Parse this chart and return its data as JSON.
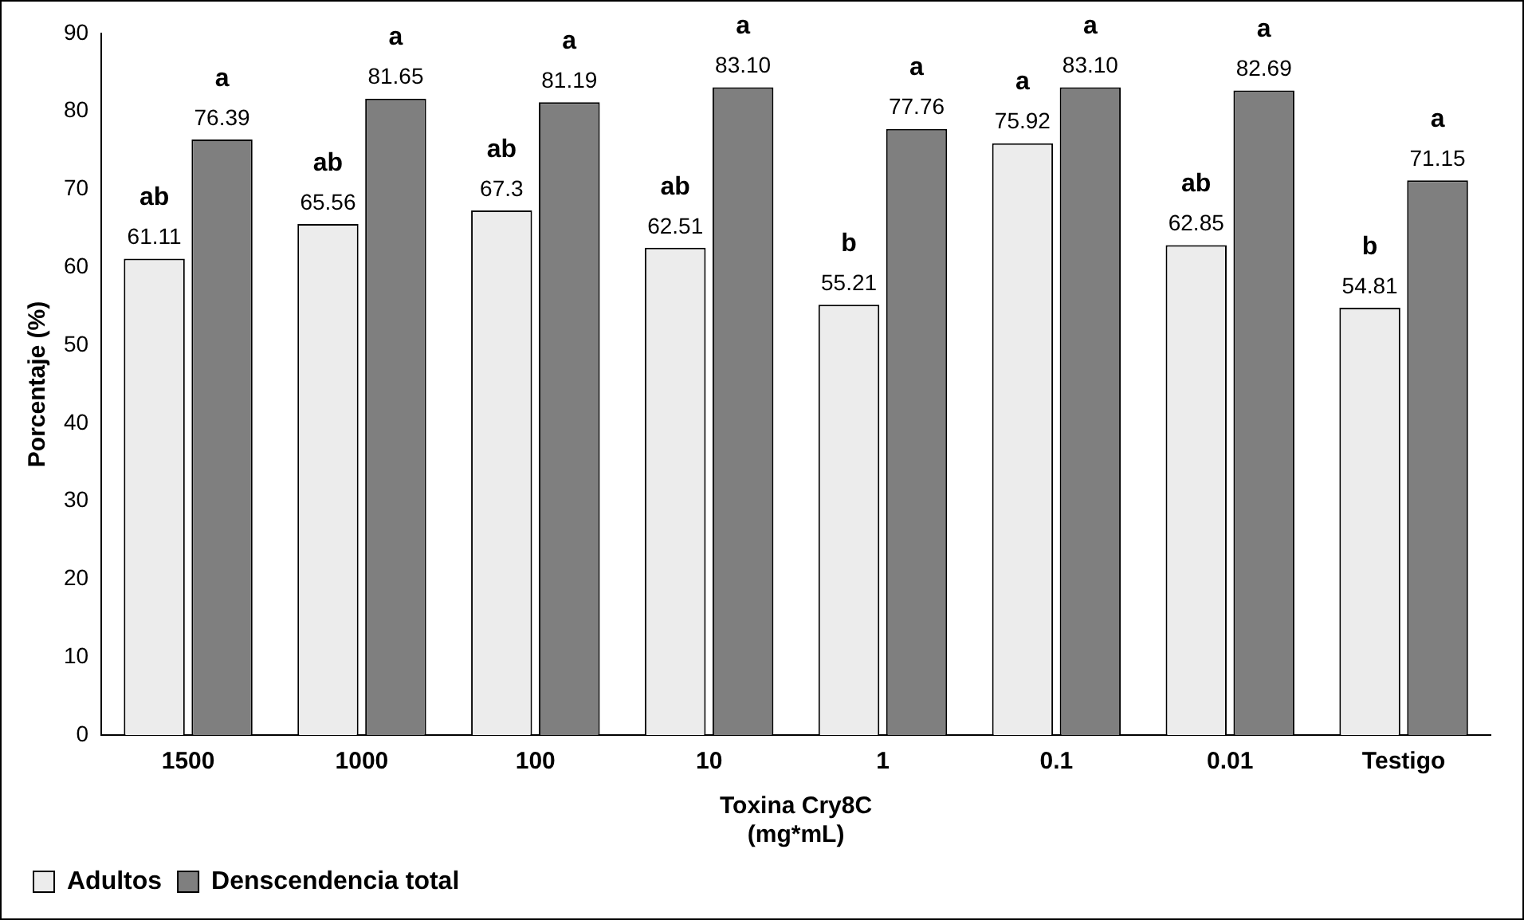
{
  "chart_data": {
    "type": "bar",
    "xlabel": [
      "Toxina Cry8C",
      "(mg*mL)"
    ],
    "ylabel": "Porcentaje (%)",
    "categories": [
      "1500",
      "1000",
      "100",
      "10",
      "1",
      "0.1",
      "0.01",
      "Testigo"
    ],
    "series": [
      {
        "name": "Adultos",
        "color": "#ececec",
        "values": [
          61.11,
          65.56,
          67.3,
          62.51,
          55.21,
          75.92,
          62.85,
          54.81
        ],
        "value_labels": [
          "61.11",
          "65.56",
          "67.3",
          "62.51",
          "55.21",
          "75.92",
          "62.85",
          "54.81"
        ]
      },
      {
        "name": "Denscendencia total",
        "color": "#7f7f7f",
        "values": [
          76.39,
          81.65,
          81.19,
          83.1,
          77.76,
          83.1,
          82.69,
          71.15
        ],
        "value_labels": [
          "76.39",
          "81.65",
          "81.19",
          "83.10",
          "77.76",
          "83.10",
          "82.69",
          "71.15"
        ]
      }
    ],
    "ylim": [
      0,
      90
    ],
    "yticks": [
      0,
      10,
      20,
      30,
      40,
      50,
      60,
      70,
      80,
      90
    ],
    "grid": false,
    "legend": "bottom left",
    "annotations": [
      {
        "text": "ab",
        "x": "1500",
        "y": 61.11
      },
      {
        "text": "a",
        "x": "1500",
        "y": 76.39
      },
      {
        "text": "ab",
        "x": "1000",
        "y": 65.56
      },
      {
        "text": "a",
        "x": "1000",
        "y": 81.65
      },
      {
        "text": "ab",
        "x": "100",
        "y": 67.3
      },
      {
        "text": "a",
        "x": "100",
        "y": 81.19
      },
      {
        "text": "ab",
        "x": "10",
        "y": 62.51
      },
      {
        "text": "a",
        "x": "10",
        "y": 83.1
      },
      {
        "text": "b",
        "x": "1",
        "y": 55.21
      },
      {
        "text": "a",
        "x": "1",
        "y": 77.76
      },
      {
        "text": "a",
        "x": "0.1",
        "y": 75.92
      },
      {
        "text": "a",
        "x": "0.1",
        "y": 83.1
      },
      {
        "text": "ab",
        "x": "0.01",
        "y": 62.85
      },
      {
        "text": "a",
        "x": "0.01",
        "y": 82.69
      },
      {
        "text": "b",
        "x": "Testigo",
        "y": 54.81
      },
      {
        "text": "a",
        "x": "Testigo",
        "y": 71.15
      }
    ]
  }
}
